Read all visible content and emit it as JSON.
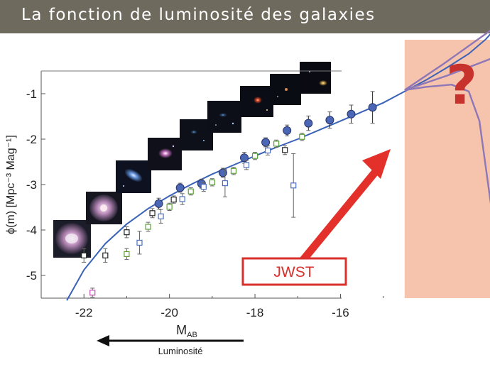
{
  "slide": {
    "title": "La fonction de luminosité des galaxies"
  },
  "annotation": {
    "jwst_label": "JWST",
    "question_mark": "?",
    "luminosity_label": "Luminosité"
  },
  "colors": {
    "model_curve": "#3a62b8",
    "fit_points": "#4a66b4",
    "jwst_region": "#f6c3ad",
    "arrow": "#e3302a",
    "extrapolations": "#8d77b6",
    "question_mark": "#c8322c"
  },
  "chart_data": {
    "type": "scatter",
    "title": "",
    "xlabel": "M",
    "xlabel_sub": "AB",
    "ylabel": "ϕ(m) [Mpc⁻³ Mag⁻¹]",
    "xlim": [
      -23.0,
      -13.4
    ],
    "ylim": [
      -5.5,
      -0.5
    ],
    "x_ticks": [
      -22,
      -20,
      -18,
      -16
    ],
    "y_ticks": [
      -1,
      -2,
      -3,
      -4,
      -5
    ],
    "x_axis_reversed_for_luminosity": true,
    "jwst_region_x": [
      -14.5,
      -11.4
    ],
    "series": [
      {
        "style": "filled-circle",
        "points": [
          {
            "x": -20.25,
            "y": -3.42,
            "err": 0.12
          },
          {
            "x": -19.75,
            "y": -3.07,
            "err": 0.1
          },
          {
            "x": -19.25,
            "y": -2.98,
            "err": 0.1
          },
          {
            "x": -18.75,
            "y": -2.74,
            "err": 0.1
          },
          {
            "x": -18.25,
            "y": -2.41,
            "err": 0.12
          },
          {
            "x": -17.75,
            "y": -2.07,
            "err": 0.1
          },
          {
            "x": -17.25,
            "y": -1.81,
            "err": 0.12
          },
          {
            "x": -16.75,
            "y": -1.65,
            "err": 0.16
          },
          {
            "x": -16.25,
            "y": -1.58,
            "err": 0.18
          },
          {
            "x": -15.75,
            "y": -1.45,
            "err": 0.2
          },
          {
            "x": -15.25,
            "y": -1.3,
            "err": 0.35
          }
        ]
      },
      {
        "style": "open-square-black",
        "points": [
          {
            "x": -22.0,
            "y": -4.56,
            "err": 0.15
          },
          {
            "x": -21.5,
            "y": -4.56,
            "err": 0.15
          },
          {
            "x": -21.0,
            "y": -4.05,
            "err": 0.12
          },
          {
            "x": -20.4,
            "y": -3.63,
            "err": 0.1
          },
          {
            "x": -19.9,
            "y": -3.33,
            "err": 0.08
          },
          {
            "x": -17.3,
            "y": -2.24,
            "err": 0.1
          }
        ]
      },
      {
        "style": "open-square-blue",
        "points": [
          {
            "x": -20.7,
            "y": -4.28,
            "err": 0.25
          },
          {
            "x": -20.2,
            "y": -3.7,
            "err": 0.15
          },
          {
            "x": -19.7,
            "y": -3.32,
            "err": 0.12
          },
          {
            "x": -19.2,
            "y": -3.05,
            "err": 0.1
          },
          {
            "x": -18.7,
            "y": -2.97,
            "err": 0.3
          },
          {
            "x": -18.2,
            "y": -2.57,
            "err": 0.1
          },
          {
            "x": -17.7,
            "y": -2.25,
            "err": 0.1
          },
          {
            "x": -17.1,
            "y": -3.02,
            "err": 0.7
          }
        ]
      },
      {
        "style": "open-square-green",
        "points": [
          {
            "x": -21.0,
            "y": -4.53,
            "err": 0.12
          },
          {
            "x": -20.5,
            "y": -3.93,
            "err": 0.1
          },
          {
            "x": -20.0,
            "y": -3.49,
            "err": 0.08
          },
          {
            "x": -19.5,
            "y": -3.15,
            "err": 0.08
          },
          {
            "x": -19.0,
            "y": -2.95,
            "err": 0.08
          },
          {
            "x": -18.5,
            "y": -2.7,
            "err": 0.08
          },
          {
            "x": -18.0,
            "y": -2.37,
            "err": 0.08
          },
          {
            "x": -17.5,
            "y": -2.1,
            "err": 0.08
          },
          {
            "x": -16.9,
            "y": -1.95,
            "err": 0.08
          }
        ]
      },
      {
        "style": "open-square-magenta",
        "points": [
          {
            "x": -21.8,
            "y": -5.38,
            "err": 0.1
          }
        ]
      }
    ],
    "model_curve": [
      {
        "x": -22.4,
        "y": -5.55
      },
      {
        "x": -22.0,
        "y": -4.88
      },
      {
        "x": -21.5,
        "y": -4.3
      },
      {
        "x": -21.0,
        "y": -3.87
      },
      {
        "x": -20.5,
        "y": -3.53
      },
      {
        "x": -20.0,
        "y": -3.25
      },
      {
        "x": -19.5,
        "y": -3.0
      },
      {
        "x": -19.0,
        "y": -2.77
      },
      {
        "x": -18.5,
        "y": -2.57
      },
      {
        "x": -18.0,
        "y": -2.37
      },
      {
        "x": -17.5,
        "y": -2.18
      },
      {
        "x": -17.0,
        "y": -2.0
      },
      {
        "x": -16.5,
        "y": -1.8
      },
      {
        "x": -16.0,
        "y": -1.6
      },
      {
        "x": -15.5,
        "y": -1.4
      },
      {
        "x": -15.0,
        "y": -1.2
      },
      {
        "x": -14.5,
        "y": -0.95
      },
      {
        "x": -14.0,
        "y": -0.7
      },
      {
        "x": -13.5,
        "y": -0.42
      },
      {
        "x": -13.0,
        "y": -0.12
      },
      {
        "x": -12.6,
        "y": 0.2
      },
      {
        "x": -12.3,
        "y": 0.52
      }
    ],
    "extrapolations": [
      [
        {
          "x": -14.5,
          "y": -0.92
        },
        {
          "x": -14.0,
          "y": -0.85
        },
        {
          "x": -13.4,
          "y": -0.8
        },
        {
          "x": -13.0,
          "y": -0.95
        },
        {
          "x": -12.75,
          "y": -1.6
        },
        {
          "x": -12.62,
          "y": -2.5
        },
        {
          "x": -12.48,
          "y": -3.45
        }
      ],
      [
        {
          "x": -14.5,
          "y": -0.92
        },
        {
          "x": -13.5,
          "y": -0.6
        },
        {
          "x": -12.4,
          "y": -0.2
        },
        {
          "x": -11.8,
          "y": -0.25
        },
        {
          "x": -11.6,
          "y": -0.6
        },
        {
          "x": -11.55,
          "y": -1.5
        },
        {
          "x": -11.5,
          "y": -3.4
        }
      ],
      [
        {
          "x": -14.5,
          "y": -0.92
        },
        {
          "x": -13.6,
          "y": -0.35
        },
        {
          "x": -12.3,
          "y": 0.52
        }
      ]
    ]
  }
}
